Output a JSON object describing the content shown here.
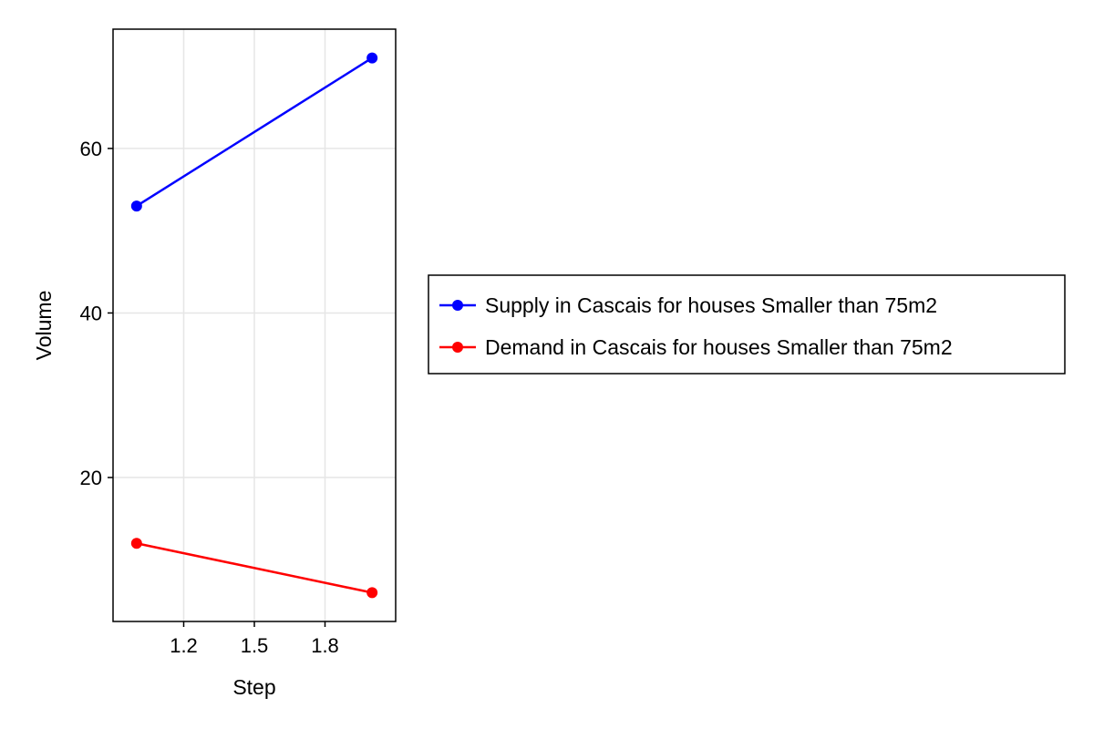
{
  "chart_data": {
    "type": "line",
    "xlabel": "Step",
    "ylabel": "Volume",
    "xlim": [
      0.9,
      2.1
    ],
    "ylim": [
      2.5,
      74.5
    ],
    "xticks": [
      1.2,
      1.5,
      1.8
    ],
    "xtick_labels": [
      "1.2",
      "1.5",
      "1.8"
    ],
    "yticks": [
      20,
      40,
      60
    ],
    "ytick_labels": [
      "20",
      "40",
      "60"
    ],
    "grid": true,
    "legend_position": "right-center",
    "series": [
      {
        "name": "Supply in Cascais for houses Smaller than 75m2",
        "color": "#0000ff",
        "x": [
          1,
          2
        ],
        "y": [
          53,
          71
        ]
      },
      {
        "name": "Demand in Cascais for houses Smaller than 75m2",
        "color": "#ff0000",
        "x": [
          1,
          2
        ],
        "y": [
          12,
          6
        ]
      }
    ]
  }
}
